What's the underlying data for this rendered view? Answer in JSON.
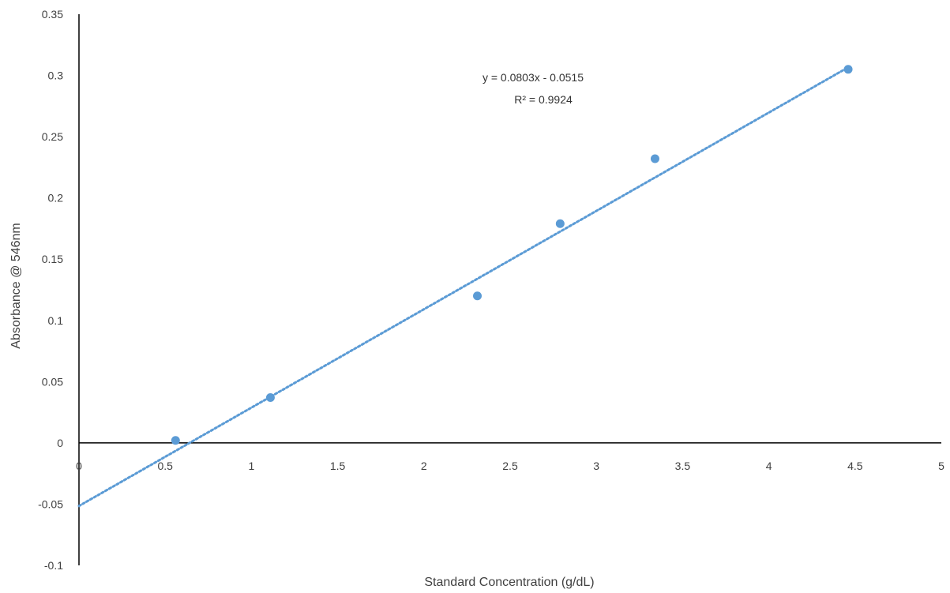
{
  "chart_data": {
    "type": "scatter",
    "title": "",
    "xlabel": "Standard Concentration (g/dL)",
    "ylabel": "Absorbance @ 546nm",
    "xlim": [
      0,
      5
    ],
    "ylim": [
      -0.1,
      0.35
    ],
    "x_ticks": [
      "0",
      "0.5",
      "1",
      "1.5",
      "2",
      "2.5",
      "3",
      "3.5",
      "4",
      "4.5",
      "5"
    ],
    "y_ticks": [
      "-0.1",
      "-0.05",
      "0",
      "0.05",
      "0.1",
      "0.15",
      "0.2",
      "0.25",
      "0.3",
      "0.35"
    ],
    "grid": false,
    "legend": "none",
    "series": [
      {
        "x": [
          0.56,
          1.11,
          2.31,
          2.79,
          3.34,
          4.46
        ],
        "y": [
          0.002,
          0.037,
          0.12,
          0.179,
          0.232,
          0.305
        ],
        "color": "#5b9bd5"
      }
    ],
    "trendline": {
      "type": "linear",
      "slope": 0.0803,
      "intercept": -0.0515,
      "x_range": [
        0,
        4.46
      ],
      "style": "dotted",
      "color": "#5b9bd5",
      "equation_label": "y = 0.0803x - 0.0515",
      "r2_label": "R² = 0.9924"
    }
  }
}
